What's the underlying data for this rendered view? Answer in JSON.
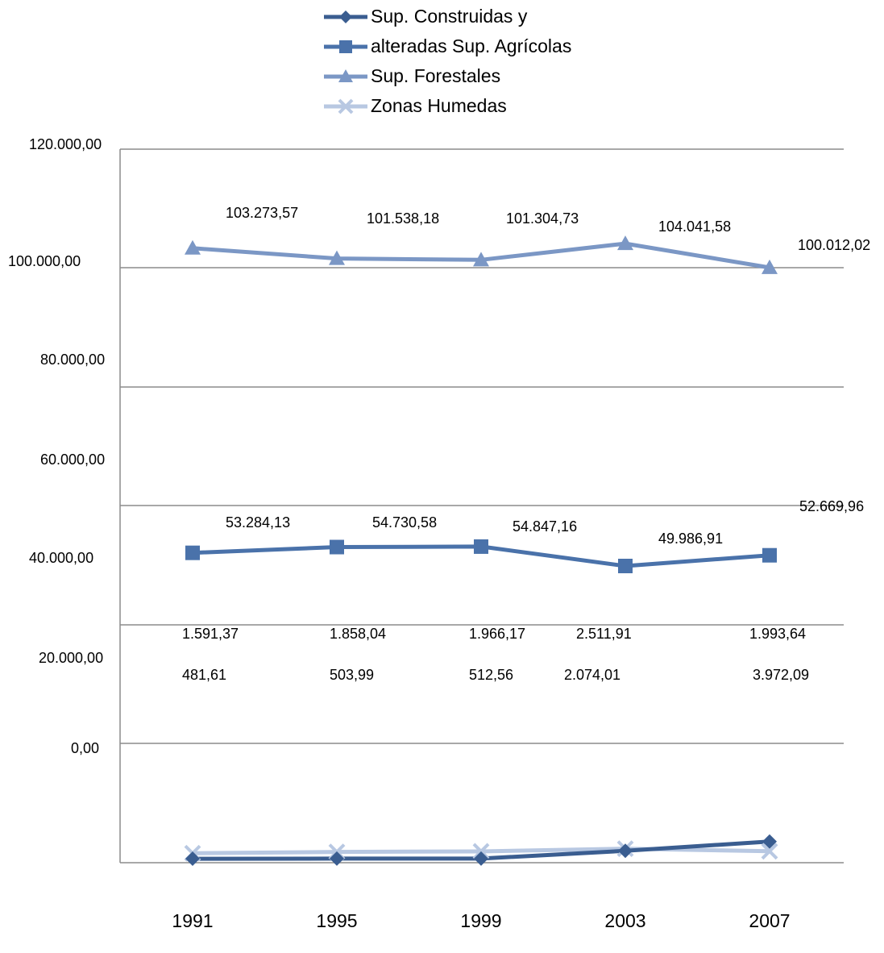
{
  "chart_data": {
    "type": "line",
    "categories": [
      "1991",
      "1995",
      "1999",
      "2003",
      "2007"
    ],
    "y_tick_labels": [
      "120.000,00",
      "100.000,00",
      "80.000,00",
      "60.000,00",
      "40.000,00",
      "20.000,00",
      "0,00"
    ],
    "grid": true,
    "legend_position": "top",
    "series": [
      {
        "name": "Sup. Construidas y",
        "color": "#3a5d90",
        "marker": "diamond",
        "labels": [
          "481,61",
          "503,99",
          "512,56",
          "2.074,01",
          "3.972,09"
        ],
        "values": [
          481.61,
          503.99,
          512.56,
          2074.01,
          3972.09
        ]
      },
      {
        "name": "alteradas Sup. Agrícolas",
        "color": "#4a72aa",
        "marker": "square",
        "labels": [
          "53.284,13",
          "54.730,58",
          "54.847,16",
          "49.986,91",
          "52.669,96"
        ],
        "values": [
          53284.13,
          54730.58,
          54847.16,
          49986.91,
          52669.96
        ]
      },
      {
        "name": "Sup. Forestales",
        "color": "#7b97c5",
        "marker": "triangle",
        "labels": [
          "103.273,57",
          "101.538,18",
          "101.304,73",
          "104.041,58",
          "100.012,02"
        ],
        "values": [
          103273.57,
          101538.18,
          101304.73,
          104041.58,
          100012.02
        ]
      },
      {
        "name": "Zonas Humedas",
        "color": "#b8c8e2",
        "marker": "x",
        "labels": [
          "1.591,37",
          "1.858,04",
          "1.966,17",
          "2.511,91",
          "1.993,64"
        ],
        "values": [
          1591.37,
          1858.04,
          1966.17,
          2511.91,
          1993.64
        ]
      }
    ]
  }
}
